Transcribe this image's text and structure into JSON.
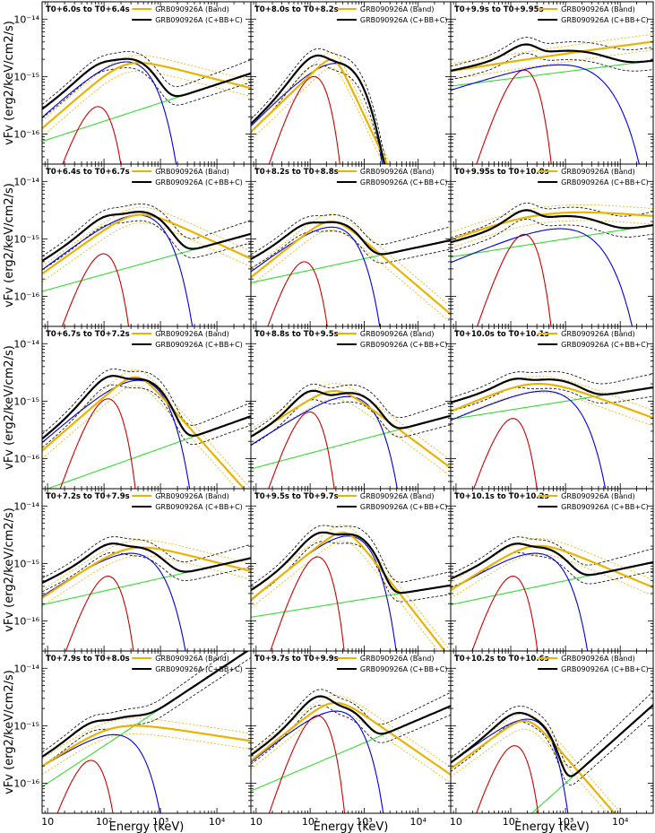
{
  "chart_data": {
    "type": "line",
    "figure": "GRB 090926A time-resolved spectral fits",
    "xlabel": "Energy (keV)",
    "ylabel": "vFv (erg2/keV/cm2/s)",
    "xscale": "log",
    "yscale": "log",
    "xlim": [
      8,
      40000
    ],
    "ylim": [
      3e-17,
      2e-14
    ],
    "xticks": [
      {
        "value": 10,
        "label": "10"
      },
      {
        "value": 100,
        "label": "10²"
      },
      {
        "value": 1000,
        "label": "10³"
      },
      {
        "value": 10000,
        "label": "10⁴"
      }
    ],
    "yticks": [
      {
        "value": 1e-14,
        "label": "10⁻¹⁴"
      },
      {
        "value": 1e-15,
        "label": "10⁻¹⁵"
      },
      {
        "value": 1e-16,
        "label": "10⁻¹⁶"
      }
    ],
    "legend": [
      "GRB090926A (Band)",
      "GRB090926A (C+BB+C)"
    ],
    "colors": {
      "band": "#e8b400",
      "total": "#000000",
      "blackbody": "#cc0000",
      "cutoff": "#0000dd",
      "powerlaw": "#33dd33"
    },
    "panels": [
      {
        "title": "T0+6.0s to T0+6.4s",
        "blackbody": {
          "kT": 20,
          "peak": 3e-16
        },
        "cutoff": {
          "Epk": 250,
          "Fpk": 1.8e-15,
          "slope": 0.9,
          "sharp": 1.0
        },
        "powerlaw": {
          "F10": 8e-17,
          "slope": 0.32
        },
        "band": {
          "Epk": 240,
          "Fpk": 1.6e-15,
          "a": 0.85,
          "b": -0.25
        }
      },
      {
        "title": "T0+8.0s to T0+8.2s",
        "blackbody": {
          "kT": 30,
          "peak": 1e-15
        },
        "cutoff": {
          "Epk": 300,
          "Fpk": 1.7e-15,
          "slope": 0.95,
          "sharp": 1.0
        },
        "powerlaw": {
          "F10": 1e-17,
          "slope": 0.05
        },
        "band": {
          "Epk": 280,
          "Fpk": 1.9e-15,
          "a": 0.9,
          "b": -2.0
        }
      },
      {
        "title": "T0+9.9s to T0+9.95s",
        "blackbody": {
          "kT": 45,
          "peak": 1.3e-15
        },
        "cutoff": {
          "Epk": 800,
          "Fpk": 1.6e-15,
          "slope": 0.3,
          "sharp": 0.8
        },
        "powerlaw": {
          "F10": 7e-16,
          "slope": 0.12
        },
        "band": {
          "Epk": 400,
          "Fpk": 2.2e-15,
          "a": 0.18,
          "b": 0.1
        }
      },
      {
        "title": "T0+6.4s to T0+6.7s",
        "blackbody": {
          "kT": 25,
          "peak": 5.5e-16
        },
        "cutoff": {
          "Epk": 400,
          "Fpk": 2.6e-15,
          "slope": 0.75,
          "sharp": 1.0
        },
        "powerlaw": {
          "F10": 1.3e-16,
          "slope": 0.27
        },
        "band": {
          "Epk": 380,
          "Fpk": 2.6e-15,
          "a": 0.7,
          "b": -0.45
        }
      },
      {
        "title": "T0+8.2s to T0+8.8s",
        "blackbody": {
          "kT": 20,
          "peak": 4e-16
        },
        "cutoff": {
          "Epk": 250,
          "Fpk": 1.6e-15,
          "slope": 0.7,
          "sharp": 1.1
        },
        "powerlaw": {
          "F10": 1.8e-16,
          "slope": 0.2
        },
        "band": {
          "Epk": 250,
          "Fpk": 2e-15,
          "a": 0.75,
          "b": -0.8
        }
      },
      {
        "title": "T0+9.95s to T0+10.0s",
        "blackbody": {
          "kT": 45,
          "peak": 1.2e-15
        },
        "cutoff": {
          "Epk": 800,
          "Fpk": 1.5e-15,
          "slope": 0.4,
          "sharp": 0.8
        },
        "powerlaw": {
          "F10": 5e-16,
          "slope": 0.15
        },
        "band": {
          "Epk": 350,
          "Fpk": 2.6e-15,
          "a": 0.35,
          "b": -0.08
        }
      },
      {
        "title": "T0+6.7s to T0+7.2s",
        "blackbody": {
          "kT": 30,
          "peak": 1.1e-15
        },
        "cutoff": {
          "Epk": 400,
          "Fpk": 2.3e-15,
          "slope": 0.85,
          "sharp": 1.0
        },
        "powerlaw": {
          "F10": 3e-17,
          "slope": 0.35
        },
        "band": {
          "Epk": 380,
          "Fpk": 2.6e-15,
          "a": 0.85,
          "b": -1.1
        }
      },
      {
        "title": "T0+8.8s to T0+9.5s",
        "blackbody": {
          "kT": 25,
          "peak": 6.5e-16
        },
        "cutoff": {
          "Epk": 500,
          "Fpk": 1.2e-15,
          "slope": 0.6,
          "sharp": 1.1
        },
        "powerlaw": {
          "F10": 7e-17,
          "slope": 0.25
        },
        "band": {
          "Epk": 300,
          "Fpk": 1.5e-15,
          "a": 0.6,
          "b": -0.7
        }
      },
      {
        "title": "T0+10.0s to T0+10.1s",
        "blackbody": {
          "kT": 28,
          "peak": 5e-16
        },
        "cutoff": {
          "Epk": 400,
          "Fpk": 1.5e-15,
          "slope": 0.4,
          "sharp": 1.0
        },
        "powerlaw": {
          "F10": 5e-16,
          "slope": 0.15
        },
        "band": {
          "Epk": 300,
          "Fpk": 2e-15,
          "a": 0.4,
          "b": -0.35
        }
      },
      {
        "title": "T0+7.2s to T0+7.9s",
        "blackbody": {
          "kT": 30,
          "peak": 6e-16
        },
        "cutoff": {
          "Epk": 300,
          "Fpk": 1.5e-15,
          "slope": 0.65,
          "sharp": 1.0
        },
        "powerlaw": {
          "F10": 2e-16,
          "slope": 0.22
        },
        "band": {
          "Epk": 280,
          "Fpk": 1.8e-15,
          "a": 0.65,
          "b": -0.25
        }
      },
      {
        "title": "T0+9.5s to T0+9.7s",
        "blackbody": {
          "kT": 35,
          "peak": 1.3e-15
        },
        "cutoff": {
          "Epk": 500,
          "Fpk": 3e-15,
          "slope": 0.8,
          "sharp": 1.1
        },
        "powerlaw": {
          "F10": 1.2e-16,
          "slope": 0.15
        },
        "band": {
          "Epk": 450,
          "Fpk": 3.4e-15,
          "a": 0.75,
          "b": -1.2
        }
      },
      {
        "title": "T0+10.1s to T0+10.2s",
        "blackbody": {
          "kT": 28,
          "peak": 6e-16
        },
        "cutoff": {
          "Epk": 280,
          "Fpk": 1.5e-15,
          "slope": 0.55,
          "sharp": 1.1
        },
        "powerlaw": {
          "F10": 2e-16,
          "slope": 0.2
        },
        "band": {
          "Epk": 270,
          "Fpk": 2e-15,
          "a": 0.6,
          "b": -0.4
        }
      },
      {
        "title": "T0+7.9s to T0+8.0s",
        "blackbody": {
          "kT": 15,
          "peak": 2.5e-16
        },
        "cutoff": {
          "Epk": 150,
          "Fpk": 7e-16,
          "slope": 0.6,
          "sharp": 1.2
        },
        "powerlaw": {
          "F10": 1e-16,
          "slope": 0.65
        },
        "band": {
          "Epk": 140,
          "Fpk": 9e-16,
          "a": 0.65,
          "b": -0.15
        }
      },
      {
        "title": "T0+9.7s to T0+9.9s",
        "blackbody": {
          "kT": 35,
          "peak": 1.5e-15
        },
        "cutoff": {
          "Epk": 300,
          "Fpk": 1.8e-15,
          "slope": 0.75,
          "sharp": 1.1
        },
        "powerlaw": {
          "F10": 8e-17,
          "slope": 0.4
        },
        "band": {
          "Epk": 280,
          "Fpk": 2.5e-15,
          "a": 0.75,
          "b": -0.65
        }
      },
      {
        "title": "T0+10.2s to T0+10.6s",
        "blackbody": {
          "kT": 30,
          "peak": 4.5e-16
        },
        "cutoff": {
          "Epk": 200,
          "Fpk": 1.3e-15,
          "slope": 0.7,
          "sharp": 1.4
        },
        "powerlaw": {
          "F10": 2e-18,
          "slope": 0.85
        },
        "band": {
          "Epk": 200,
          "Fpk": 1.2e-15,
          "a": 0.7,
          "b": -1.1
        }
      }
    ]
  }
}
